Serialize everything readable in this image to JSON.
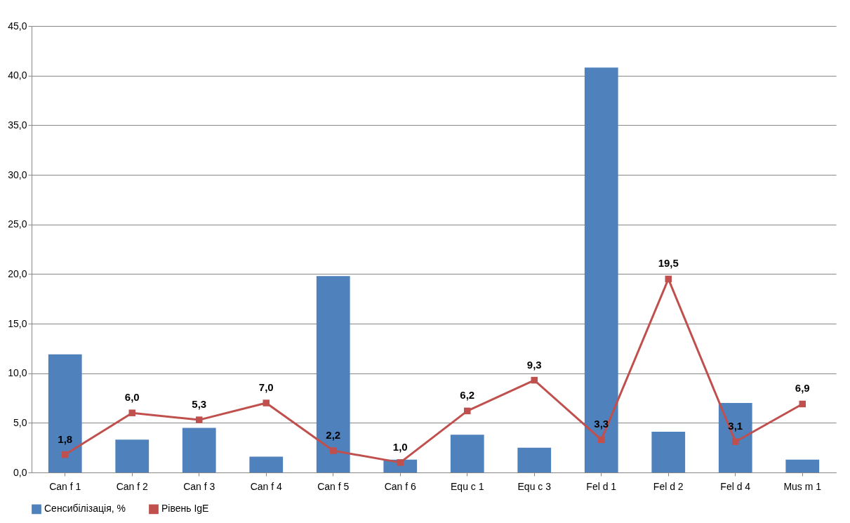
{
  "chart_data": {
    "type": "bar",
    "categories": [
      "Can f 1",
      "Can f 2",
      "Can f 3",
      "Can f 4",
      "Can f 5",
      "Can f 6",
      "Equ c 1",
      "Equ c 3",
      "Fel d 1",
      "Fel d 2",
      "Fel d 4",
      "Mus m 1"
    ],
    "series": [
      {
        "name": "Сенсибілізація, %",
        "color": "#4f81bd",
        "values": [
          11.9,
          3.3,
          4.5,
          1.6,
          19.8,
          1.3,
          3.8,
          2.5,
          40.8,
          4.1,
          7.0,
          1.3
        ]
      },
      {
        "name": "Рівень IgE",
        "type": "line",
        "color": "#c0504d",
        "marker": "square",
        "line_style": "solid",
        "values": [
          1.8,
          6.0,
          5.3,
          7.0,
          2.2,
          1.0,
          6.2,
          9.3,
          3.3,
          19.5,
          3.1,
          6.9
        ],
        "value_labels": [
          "1,8",
          "6,0",
          "5,3",
          "7,0",
          "2,2",
          "1,0",
          "6,2",
          "9,3",
          "3,3",
          "19,5",
          "3,1",
          "6,9"
        ]
      }
    ],
    "ylim": [
      0,
      45
    ],
    "yticks": [
      {
        "value": 0,
        "label": "0,0"
      },
      {
        "value": 5,
        "label": "5,0"
      },
      {
        "value": 10,
        "label": "10,0"
      },
      {
        "value": 15,
        "label": "15,0"
      },
      {
        "value": 20,
        "label": "20,0"
      },
      {
        "value": 25,
        "label": "25,0"
      },
      {
        "value": 30,
        "label": "30,0"
      },
      {
        "value": 35,
        "label": "35,0"
      },
      {
        "value": 40,
        "label": "40,0"
      },
      {
        "value": 45,
        "label": "45,0"
      }
    ],
    "grid": "y",
    "legend": "bottom"
  }
}
